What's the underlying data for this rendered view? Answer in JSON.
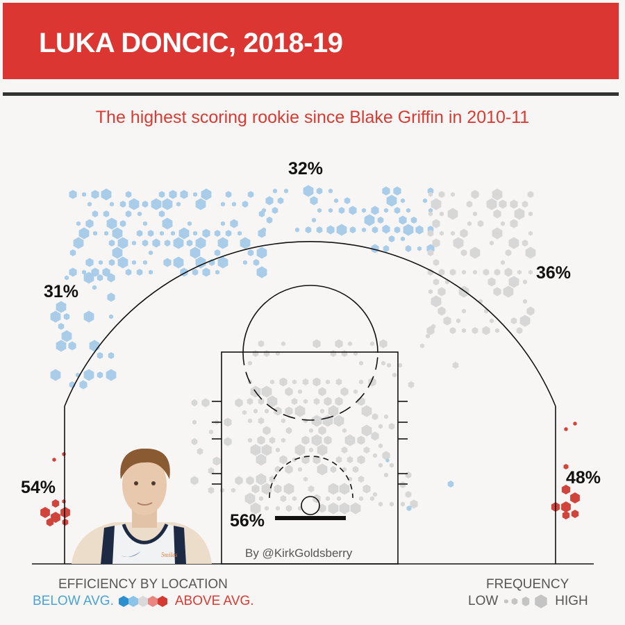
{
  "header": {
    "title": "LUKA DONCIC, 2018-19"
  },
  "subtitle": "The highest scoring rookie since Blake Griffin in 2010-11",
  "credit": "By @KirkGoldsberry",
  "player_photo": {
    "name": "player-photo",
    "jersey_text": "5miles"
  },
  "legend": {
    "efficiency": {
      "title": "EFFICIENCY BY LOCATION",
      "below": "BELOW AVG.",
      "above": "ABOVE AVG.",
      "scale_colors": [
        "#2c8fd0",
        "#8cc3e8",
        "#d9d9d9",
        "#e8867f",
        "#d33b32"
      ]
    },
    "frequency": {
      "title": "FREQUENCY",
      "low": "LOW",
      "high": "HIGH"
    }
  },
  "colors": {
    "below": "#a9cde9",
    "neutral": "#d7d7d7",
    "above": "#d1443c",
    "banner": "#db3631"
  },
  "chart_data": {
    "type": "shot-chart",
    "zones": [
      {
        "name": "left wing 3",
        "label": "31%",
        "fg_pct": 31,
        "efficiency": "below"
      },
      {
        "name": "top of key 3",
        "label": "32%",
        "fg_pct": 32,
        "efficiency": "below"
      },
      {
        "name": "right wing 3",
        "label": "36%",
        "fg_pct": 36,
        "efficiency": "average"
      },
      {
        "name": "left corner 3",
        "label": "54%",
        "fg_pct": 54,
        "efficiency": "above"
      },
      {
        "name": "right corner 3",
        "label": "48%",
        "fg_pct": 48,
        "efficiency": "above"
      },
      {
        "name": "restricted area",
        "label": "56%",
        "fg_pct": 56,
        "efficiency": "average"
      }
    ]
  }
}
